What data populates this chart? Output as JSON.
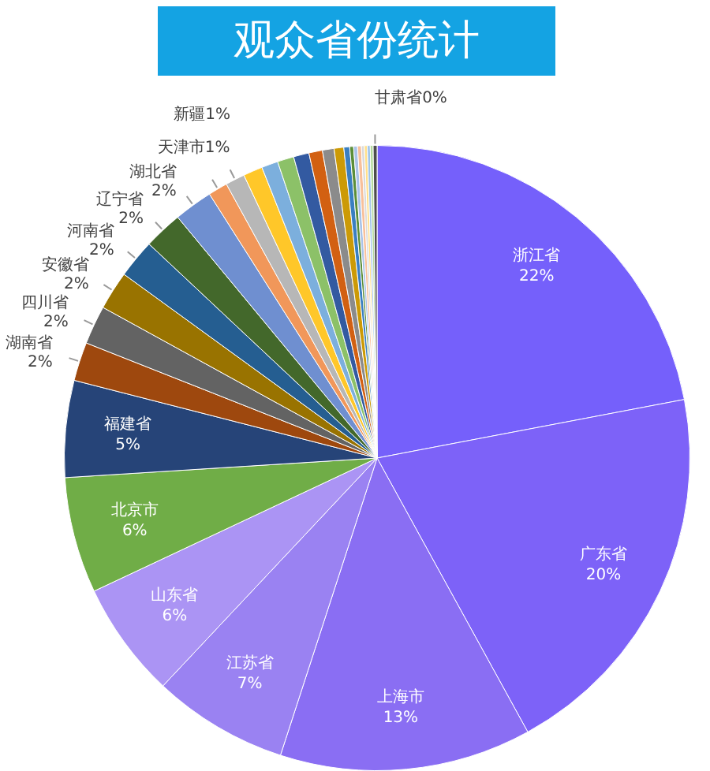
{
  "chart_data": {
    "type": "pie",
    "title": "观众省份统计",
    "legend": false,
    "categories": [
      "浙江省",
      "广东省",
      "上海市",
      "江苏省",
      "山东省",
      "北京市",
      "福建省",
      "湖南省",
      "四川省",
      "安徽省",
      "河南省",
      "辽宁省",
      "湖北省",
      "天津市",
      "新疆",
      null,
      null,
      null,
      null,
      null,
      null,
      null,
      null,
      null,
      null,
      null,
      null,
      null,
      null,
      null,
      "甘肃省"
    ],
    "values": [
      22,
      20,
      13,
      7,
      6,
      6,
      5,
      2,
      2,
      2,
      2,
      2,
      2,
      1.0,
      1.0,
      1.0,
      0.85,
      0.85,
      0.8,
      0.7,
      0.6,
      0.5,
      0.3,
      0.2,
      0.2,
      0.2,
      0.15,
      0.15,
      0.15,
      0.15,
      0.2
    ],
    "value_labels": [
      "22%",
      "20%",
      "13%",
      "7%",
      "6%",
      "6%",
      "5%",
      "2%",
      "2%",
      "2%",
      "2%",
      "2%",
      "2%",
      "1%",
      "1%",
      null,
      null,
      null,
      null,
      null,
      null,
      null,
      null,
      null,
      null,
      null,
      null,
      null,
      null,
      null,
      "0%"
    ],
    "colors": [
      "#7560fb",
      "#7d62f8",
      "#8a6ef3",
      "#9a82f2",
      "#ab94f4",
      "#70ad47",
      "#264478",
      "#9e480e",
      "#636363",
      "#997300",
      "#255e91",
      "#43682b",
      "#6f8fd0",
      "#f1975a",
      "#b7b7b7",
      "#ffc729",
      "#7cafdd",
      "#8cc168",
      "#335aa1",
      "#d26012",
      "#8b8b8b",
      "#cc9a06",
      "#3a7fc1",
      "#5b8e39",
      "#a9c3e8",
      "#f8c09a",
      "#dadada",
      "#ffe08a",
      "#9ec4ea",
      "#b4d99c",
      "#4d4d4d"
    ]
  }
}
